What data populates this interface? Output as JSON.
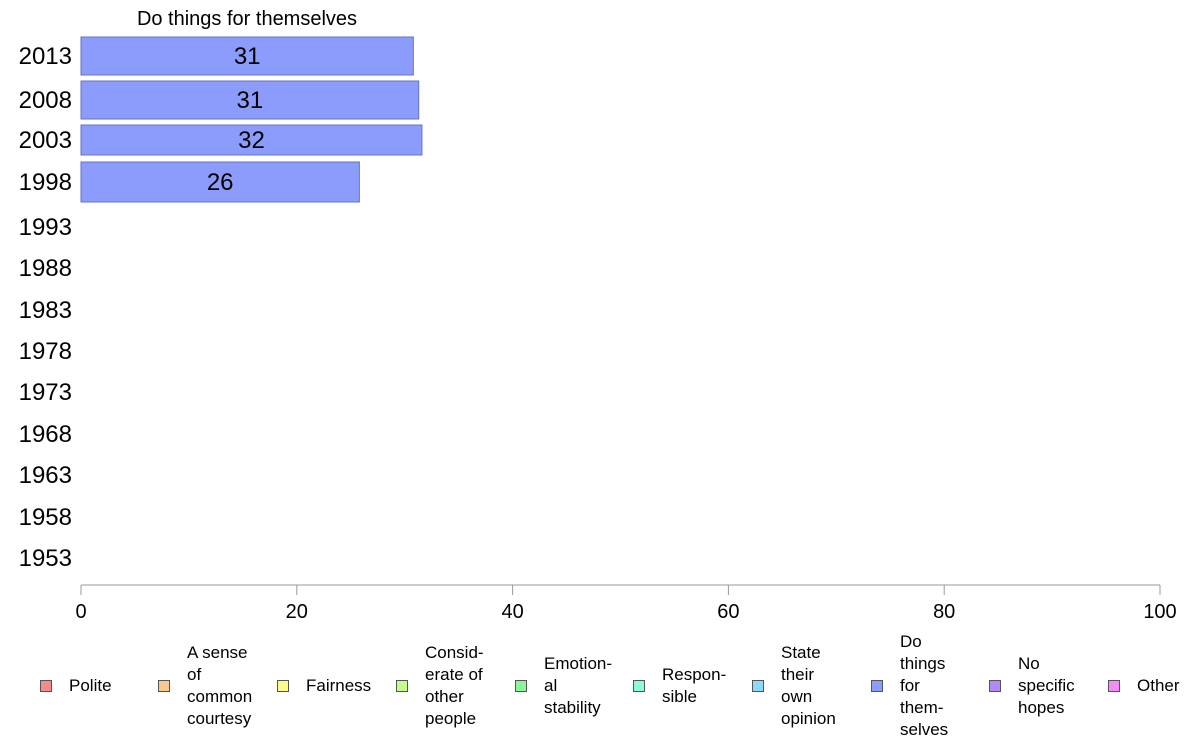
{
  "chart_data": {
    "type": "bar",
    "orientation": "horizontal",
    "title": "Do things for themselves",
    "categories": [
      "2013",
      "2008",
      "2003",
      "1998",
      "1993",
      "1988",
      "1983",
      "1978",
      "1973",
      "1968",
      "1963",
      "1958",
      "1953"
    ],
    "series": [
      {
        "name": "Do things for themselves",
        "values": [
          30.8,
          31.3,
          31.6,
          25.8,
          null,
          null,
          null,
          null,
          null,
          null,
          null,
          null,
          null
        ]
      }
    ],
    "data_labels": [
      "31",
      "31",
      "32",
      "26",
      "",
      "",
      "",
      "",
      "",
      "",
      "",
      "",
      ""
    ],
    "bar_color": "#8b9cfc",
    "xlim": [
      0,
      100
    ],
    "xticks": [
      "0",
      "20",
      "40",
      "60",
      "80",
      "100"
    ],
    "grid": false
  },
  "legend": [
    {
      "label": "Polite",
      "color": "#f58b8b"
    },
    {
      "label": "A sense\nof\ncommon\ncourtesy",
      "color": "#f9c98b"
    },
    {
      "label": "Fairness",
      "color": "#fbfb8b"
    },
    {
      "label": "Consid-\nerate of\nother\npeople",
      "color": "#c6fb8b"
    },
    {
      "label": "Emotion-\nal\nstability",
      "color": "#8bf598"
    },
    {
      "label": "Respon-\nsible",
      "color": "#8bfbd9"
    },
    {
      "label": "State\ntheir\nown\nopinion",
      "color": "#8bdafb"
    },
    {
      "label": "Do\nthings\nfor\nthem-\nselves",
      "color": "#8b9cfc"
    },
    {
      "label": "No\nspecific\nhopes",
      "color": "#b18bfb"
    },
    {
      "label": "Other",
      "color": "#f38bf8"
    }
  ]
}
